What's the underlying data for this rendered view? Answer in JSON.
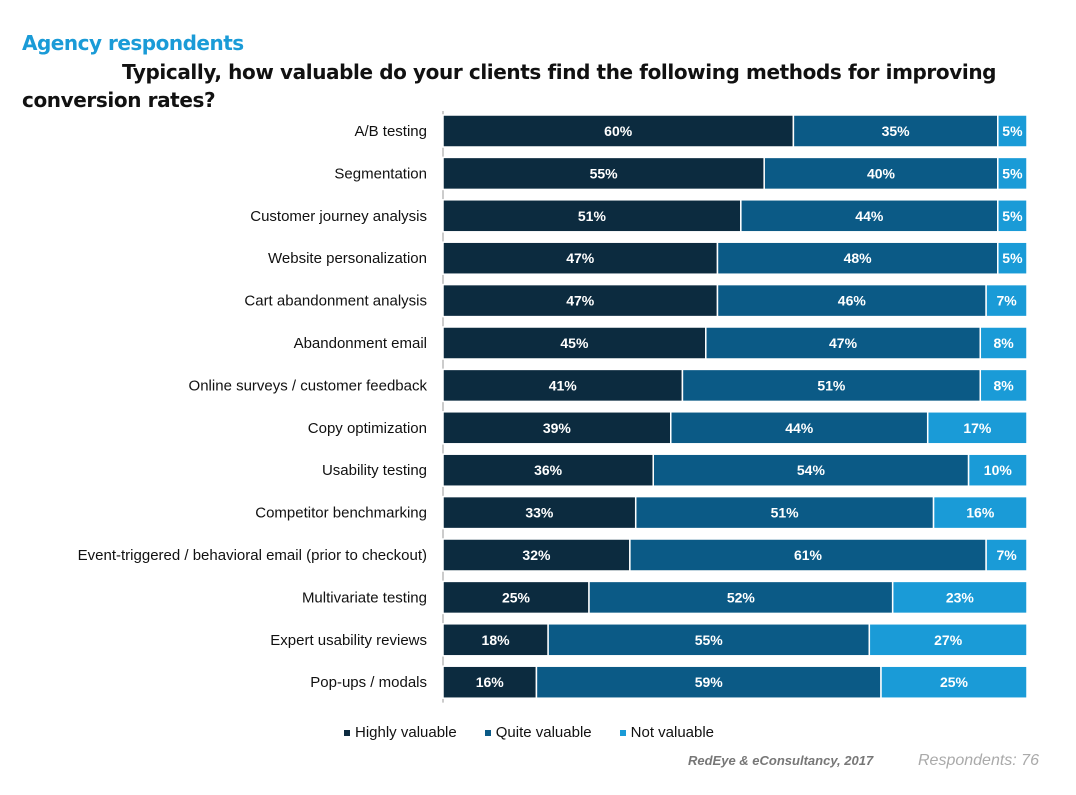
{
  "chart_data": {
    "type": "bar",
    "orientation": "horizontal",
    "stacked": true,
    "subtitle": "Agency respondents",
    "title": "Typically, how valuable do your clients find the following methods for improving conversion rates?",
    "categories": [
      "A/B testing",
      "Segmentation",
      "Customer journey analysis",
      "Website personalization",
      "Cart abandonment analysis",
      "Abandonment email",
      "Online surveys / customer feedback",
      "Copy optimization",
      "Usability testing",
      "Competitor benchmarking",
      "Event-triggered / behavioral email (prior to checkout)",
      "Multivariate testing",
      "Expert usability reviews",
      "Pop-ups / modals"
    ],
    "series": [
      {
        "name": "Highly valuable",
        "color": "#0c2b3f",
        "values": [
          60,
          55,
          51,
          47,
          47,
          45,
          41,
          39,
          36,
          33,
          32,
          25,
          18,
          16
        ]
      },
      {
        "name": "Quite valuable",
        "color": "#0b5a86",
        "values": [
          35,
          40,
          44,
          48,
          46,
          47,
          51,
          44,
          54,
          51,
          61,
          52,
          55,
          59
        ]
      },
      {
        "name": "Not valuable",
        "color": "#1a9bd7",
        "values": [
          5,
          5,
          5,
          5,
          7,
          8,
          8,
          17,
          10,
          16,
          7,
          23,
          27,
          25
        ]
      }
    ],
    "unit": "%",
    "xlim": [
      0,
      100
    ],
    "legend_position": "bottom",
    "grid": false
  },
  "source": "RedEye & eConsultancy, 2017",
  "respondents": "Respondents: 76"
}
